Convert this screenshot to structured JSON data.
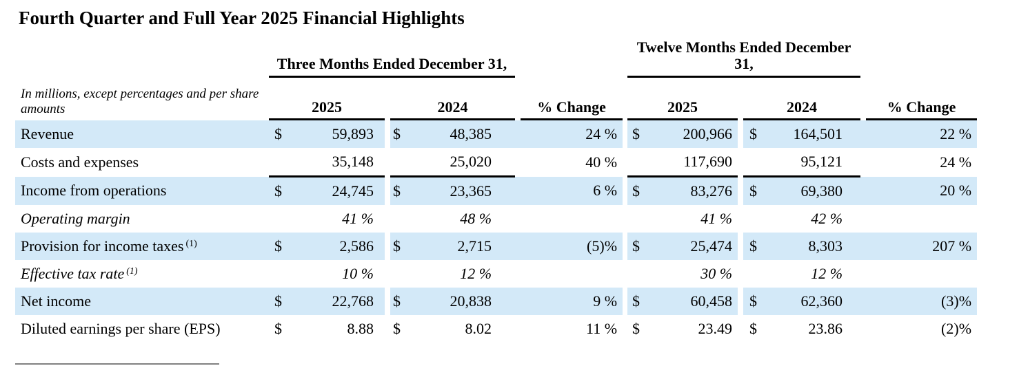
{
  "title": "Fourth Quarter and Full Year 2025 Financial Highlights",
  "table": {
    "note": "In millions, except percentages and per share amounts",
    "currency_symbol": "$",
    "group_headers": [
      "Three Months Ended December 31,",
      "Twelve Months Ended December 31,"
    ],
    "column_headers": {
      "year_current": "2025",
      "year_prior": "2024",
      "change": "% Change"
    },
    "rows": [
      {
        "label": "Revenue",
        "sup": "",
        "italic": false,
        "dollar": true,
        "shaded": true,
        "underline": false,
        "q1": "59,893",
        "q2": "48,385",
        "qchg": "24 %",
        "t1": "200,966",
        "t2": "164,501",
        "tchg": "22 %"
      },
      {
        "label": "Costs and expenses",
        "sup": "",
        "italic": false,
        "dollar": false,
        "shaded": false,
        "underline": true,
        "q1": "35,148",
        "q2": "25,020",
        "qchg": "40 %",
        "t1": "117,690",
        "t2": "95,121",
        "tchg": "24 %"
      },
      {
        "label": "Income from operations",
        "sup": "",
        "italic": false,
        "dollar": true,
        "shaded": true,
        "underline": false,
        "q1": "24,745",
        "q2": "23,365",
        "qchg": "6 %",
        "t1": "83,276",
        "t2": "69,380",
        "tchg": "20 %"
      },
      {
        "label": "Operating margin",
        "sup": "",
        "italic": true,
        "dollar": false,
        "shaded": false,
        "underline": false,
        "q1": "41 %",
        "q2": "48 %",
        "qchg": "",
        "t1": "41 %",
        "t2": "42 %",
        "tchg": ""
      },
      {
        "label": "Provision for income taxes",
        "sup": "(1)",
        "italic": false,
        "dollar": true,
        "shaded": true,
        "underline": false,
        "q1": "2,586",
        "q2": "2,715",
        "qchg": "(5)%",
        "t1": "25,474",
        "t2": "8,303",
        "tchg": "207 %"
      },
      {
        "label": "Effective tax rate",
        "sup": "(1)",
        "italic": true,
        "dollar": false,
        "shaded": false,
        "underline": false,
        "q1": "10 %",
        "q2": "12 %",
        "qchg": "",
        "t1": "30 %",
        "t2": "12 %",
        "tchg": ""
      },
      {
        "label": "Net income",
        "sup": "",
        "italic": false,
        "dollar": true,
        "shaded": true,
        "underline": false,
        "q1": "22,768",
        "q2": "20,838",
        "qchg": "9 %",
        "t1": "60,458",
        "t2": "62,360",
        "tchg": "(3)%"
      },
      {
        "label": "Diluted earnings per share (EPS)",
        "sup": "",
        "italic": false,
        "dollar": true,
        "shaded": false,
        "underline": false,
        "q1": "8.88",
        "q2": "8.02",
        "qchg": "11 %",
        "t1": "23.49",
        "t2": "23.86",
        "tchg": "(2)%"
      }
    ],
    "colors": {
      "row_shade": "#d3e9f8",
      "rule_black": "#000000",
      "footnote_rule_gray": "#808080"
    }
  }
}
